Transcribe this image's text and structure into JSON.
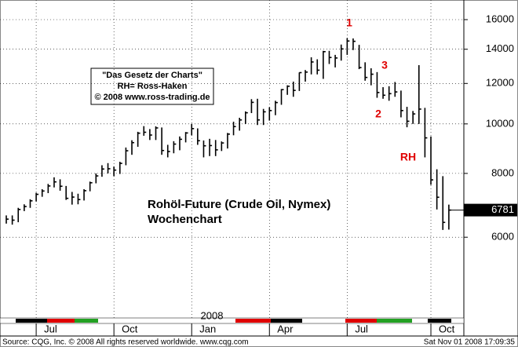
{
  "chart_data": {
    "type": "ohlc",
    "title": "Rohöl-Future (Crude Oil, Nymex)",
    "subtitle": "Wochenchart",
    "text_box": [
      "\"Das Gesetz der Charts\"",
      "RH= Ross-Haken",
      "© 2008 www.ross-trading.de"
    ],
    "annotations": [
      "1",
      "2",
      "3",
      "RH"
    ],
    "annotation_color": "#e00000",
    "year_label": "2008",
    "source": "Source: CQG, Inc. © 2008 All rights reserved worldwide. www.cqg.com",
    "timestamp": "Sat Nov 01 2008 17:09:35",
    "color": "#000000",
    "log": true,
    "grid": true,
    "ylim": [
      4170,
      17480
    ],
    "yticks": [
      6000,
      8000,
      10000,
      12000,
      14000,
      16000
    ],
    "categories": [
      null,
      null,
      null,
      null,
      null,
      "Jul",
      null,
      null,
      null,
      null,
      null,
      null,
      null,
      null,
      null,
      null,
      null,
      null,
      "Oct",
      null,
      null,
      null,
      null,
      null,
      null,
      null,
      null,
      null,
      null,
      null,
      null,
      "Jan",
      null,
      null,
      null,
      null,
      null,
      null,
      null,
      null,
      null,
      null,
      null,
      null,
      "Apr",
      null,
      null,
      null,
      null,
      null,
      null,
      null,
      null,
      null,
      null,
      null,
      null,
      "Jul",
      null,
      null,
      null,
      null,
      null,
      null,
      null,
      null,
      null,
      null,
      null,
      null,
      null,
      "Oct",
      null,
      null,
      null
    ],
    "high": [
      6620,
      6620,
      6850,
      6960,
      7120,
      7330,
      7450,
      7630,
      7860,
      7790,
      7560,
      7360,
      7300,
      7450,
      7710,
      8000,
      8300,
      8380,
      8250,
      8430,
      8990,
      9290,
      9650,
      9900,
      9770,
      9890,
      9840,
      9100,
      9250,
      9450,
      9640,
      10000,
      9800,
      9280,
      9350,
      9300,
      9240,
      9600,
      10100,
      10280,
      10580,
      11180,
      11200,
      10700,
      10780,
      11100,
      11700,
      11900,
      12100,
      12610,
      12750,
      13500,
      13380,
      13900,
      13900,
      13650,
      14300,
      14720,
      14700,
      14280,
      13200,
      12850,
      12630,
      11800,
      11850,
      12080,
      11620,
      10800,
      10600,
      13030,
      10750,
      9450,
      8150,
      7900,
      6950
    ],
    "low": [
      6380,
      6350,
      6420,
      6750,
      6850,
      7050,
      7200,
      7320,
      7510,
      7400,
      7100,
      6950,
      6960,
      7080,
      7380,
      7650,
      7880,
      8000,
      7900,
      7980,
      8300,
      8700,
      9020,
      9480,
      9300,
      9300,
      8700,
      8600,
      8760,
      8880,
      9200,
      9500,
      9100,
      8600,
      8650,
      8650,
      8850,
      8950,
      9500,
      9700,
      10000,
      10500,
      9950,
      9950,
      10150,
      10400,
      10900,
      11400,
      11300,
      11600,
      12100,
      12500,
      12500,
      12250,
      13100,
      12900,
      13300,
      13650,
      13950,
      12800,
      12150,
      11900,
      11250,
      11200,
      11100,
      11300,
      10300,
      9850,
      10000,
      10000,
      8600,
      7600,
      6800,
      6200,
      6210
    ],
    "close": [
      6510,
      6480,
      6800,
      6890,
      7070,
      7280,
      7390,
      7560,
      7700,
      7550,
      7150,
      7190,
      7110,
      7400,
      7670,
      7910,
      8160,
      8170,
      8120,
      8370,
      8860,
      9190,
      9590,
      9630,
      9510,
      9820,
      8870,
      8830,
      9130,
      9330,
      9600,
      9790,
      9270,
      9060,
      9070,
      8896,
      9177,
      9550,
      9880,
      10180,
      10515,
      11020,
      10180,
      10560,
      10620,
      11010,
      11670,
      11850,
      11630,
      12600,
      12630,
      13220,
      12740,
      13850,
      13490,
      13460,
      14020,
      14530,
      14510,
      12890,
      12330,
      12510,
      11520,
      11380,
      11460,
      11550,
      10620,
      10120,
      10460,
      10690,
      9390,
      7770,
      7185,
      6415,
      6781
    ]
  }
}
